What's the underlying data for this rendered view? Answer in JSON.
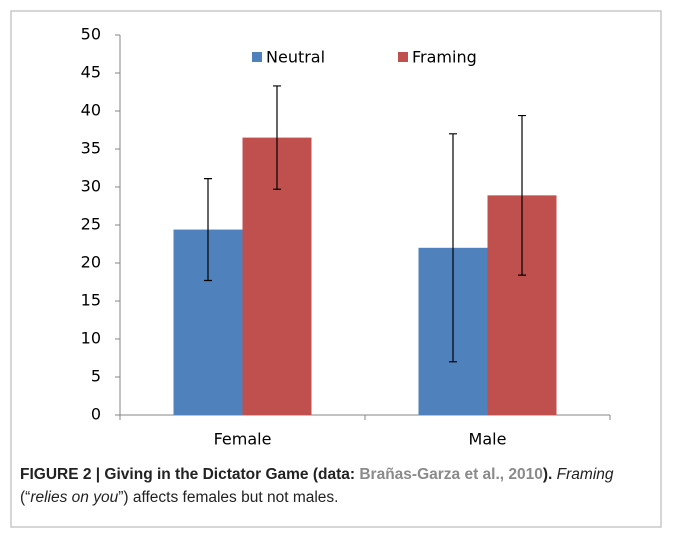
{
  "chart_data": {
    "type": "bar",
    "categories": [
      "Female",
      "Male"
    ],
    "series": [
      {
        "name": "Neutral",
        "color": "#4f81bd",
        "values": [
          24.4,
          22
        ],
        "errors": [
          6.7,
          15
        ]
      },
      {
        "name": "Framing",
        "color": "#c0504d",
        "values": [
          36.5,
          28.9
        ],
        "errors": [
          6.8,
          10.5
        ]
      }
    ],
    "ylim": [
      0,
      50
    ],
    "yticks": [
      0,
      5,
      10,
      15,
      20,
      25,
      30,
      35,
      40,
      45,
      50
    ],
    "legend": "top",
    "caption": {
      "parts": [
        "FIGURE 2 | Giving in the Dictator Game (data: ",
        "Brañas-Garza et al., 2010",
        ").",
        "Framing",
        " (“",
        "relies on you",
        "”) affects females but not males."
      ]
    }
  }
}
